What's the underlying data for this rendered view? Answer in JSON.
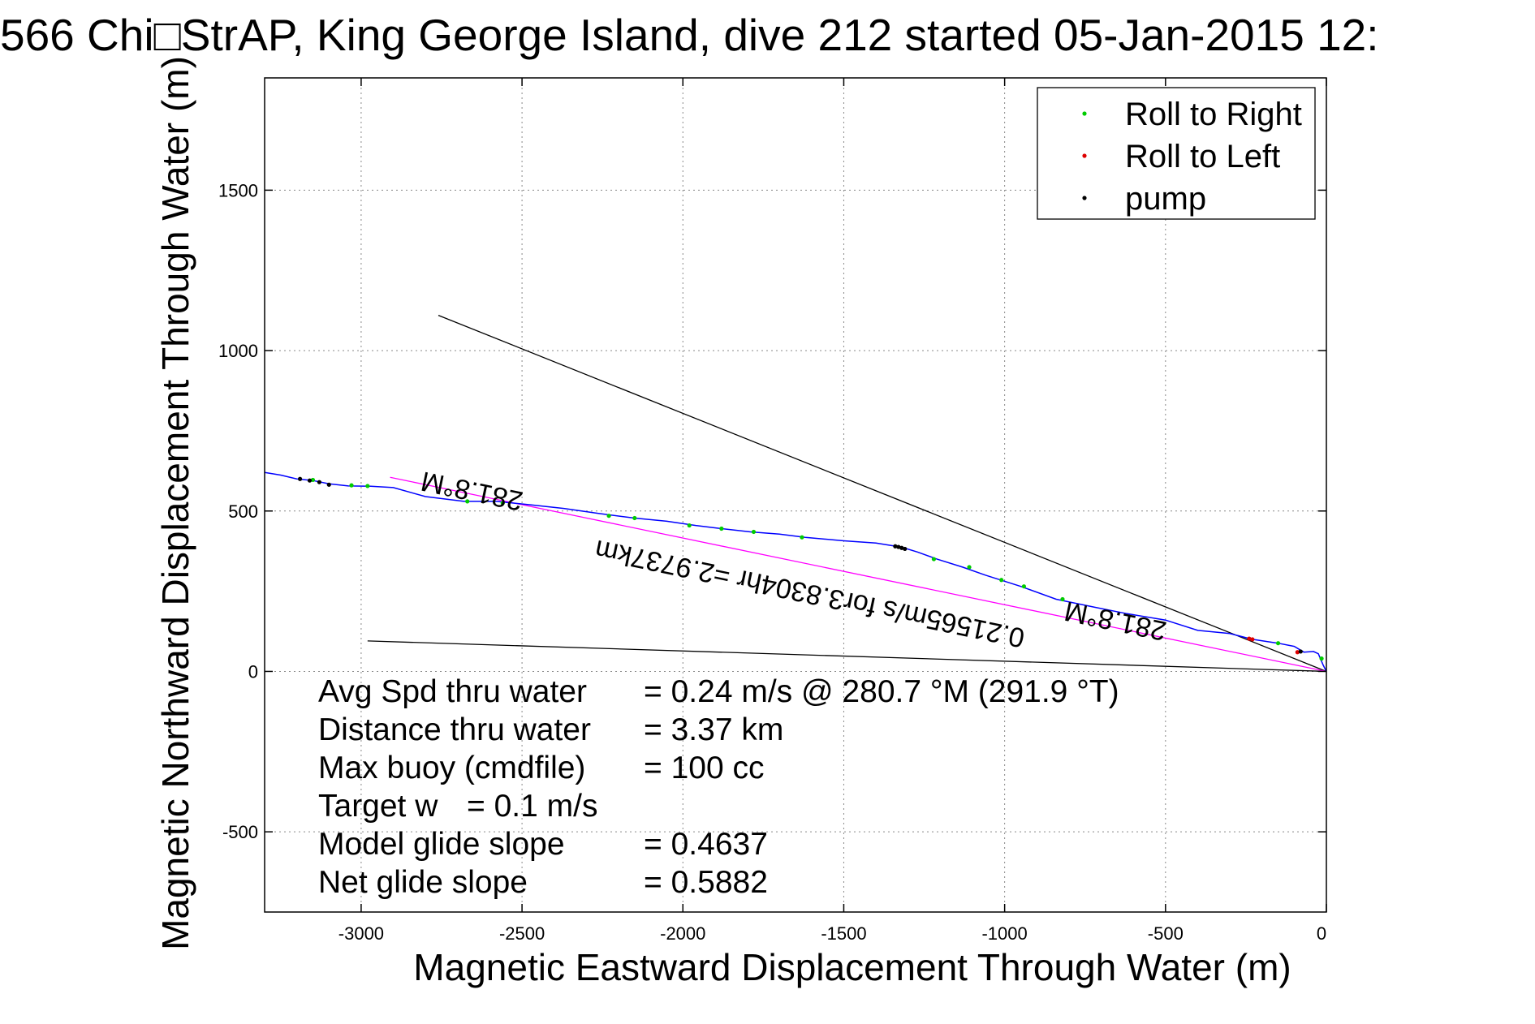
{
  "chart_data": {
    "type": "line",
    "title": "566 Chi□StrAP, King George Island, dive 212 started 05-Jan-2015 12:",
    "xlabel": "Magnetic Eastward Displacement Through Water (m)",
    "ylabel": "Magnetic Northward Displacement Through Water (m)",
    "xlim": [
      -3300,
      0
    ],
    "ylim": [
      -750,
      1850
    ],
    "x_ticks": [
      -3000,
      -2500,
      -2000,
      -1500,
      -1000,
      -500,
      0
    ],
    "y_ticks": [
      -500,
      0,
      500,
      1000,
      1500
    ],
    "grid": true,
    "legend_position": "top-right",
    "legend": [
      {
        "label": "Roll to Right",
        "color": "#00cc00"
      },
      {
        "label": "Roll to Left",
        "color": "#dd0000"
      },
      {
        "label": "pump",
        "color": "#000000"
      }
    ],
    "track": {
      "color": "#0000ff",
      "x": [
        0,
        -10,
        -25,
        -40,
        -70,
        -100,
        -150,
        -230,
        -300,
        -400,
        -500,
        -620,
        -720,
        -840,
        -950,
        -1060,
        -1130,
        -1210,
        -1270,
        -1320,
        -1400,
        -1500,
        -1620,
        -1700,
        -1790,
        -1880,
        -1960,
        -2050,
        -2150,
        -2260,
        -2370,
        -2480,
        -2580,
        -2680,
        -2800,
        -2900,
        -2970,
        -3040,
        -3100,
        -3150,
        -3200,
        -3250,
        -3300
      ],
      "y": [
        0,
        20,
        55,
        62,
        60,
        78,
        88,
        100,
        118,
        128,
        160,
        180,
        200,
        225,
        265,
        300,
        325,
        350,
        372,
        387,
        400,
        407,
        418,
        428,
        435,
        445,
        455,
        468,
        478,
        492,
        508,
        520,
        530,
        530,
        545,
        573,
        577,
        578,
        585,
        595,
        600,
        612,
        620
      ]
    },
    "roll_right_points": {
      "x": [
        -15,
        -150,
        -820,
        -940,
        -1010,
        -1110,
        -1220,
        -1630,
        -1780,
        -1880,
        -1980,
        -2150,
        -2230,
        -2560,
        -2670,
        -2980,
        -3030,
        -3150
      ],
      "y": [
        40,
        88,
        225,
        265,
        285,
        325,
        350,
        418,
        435,
        445,
        455,
        478,
        485,
        525,
        530,
        578,
        580,
        597
      ]
    },
    "roll_left_points": {
      "x": [
        -90,
        -230,
        -240
      ],
      "y": [
        60,
        100,
        102
      ]
    },
    "pump_points": {
      "x": [
        -1340,
        -1330,
        -1320,
        -1310,
        -80,
        -3100,
        -3130,
        -3160,
        -3190
      ],
      "y": [
        390,
        388,
        385,
        382,
        62,
        582,
        590,
        595,
        600
      ]
    },
    "reference_lines": [
      {
        "color": "#000000",
        "x": [
          0,
          -2760
        ],
        "y": [
          0,
          1110
        ]
      },
      {
        "color": "#000000",
        "x": [
          0,
          -2980
        ],
        "y": [
          0,
          95
        ]
      },
      {
        "color": "#ff00ff",
        "x": [
          0,
          -2910
        ],
        "y": [
          0,
          605
        ]
      }
    ],
    "annotations": [
      {
        "text": "281.8°M",
        "x": -2650,
        "y": 590,
        "rotation": 191.8
      },
      {
        "text": "281.8°M",
        "x": -650,
        "y": 185,
        "rotation": 191.8
      },
      {
        "text": "0.21565m/s for3.8304hr =2.9737km",
        "x": -1600,
        "y": 270,
        "rotation": 191.8
      }
    ],
    "stats": [
      {
        "label": "Avg Spd thru water",
        "value": "=  0.24 m/s @ 280.7 °M (291.9 °T)"
      },
      {
        "label": "Distance thru water",
        "value": "=  3.37 km"
      },
      {
        "label": "Max buoy (cmdfile)",
        "value": "= 100 cc"
      },
      {
        "label": "Target w",
        "value": "= 0.1 m/s"
      },
      {
        "label": "Model glide slope",
        "value": "= 0.4637"
      },
      {
        "label": "Net glide slope",
        "value": "= 0.5882"
      }
    ]
  }
}
